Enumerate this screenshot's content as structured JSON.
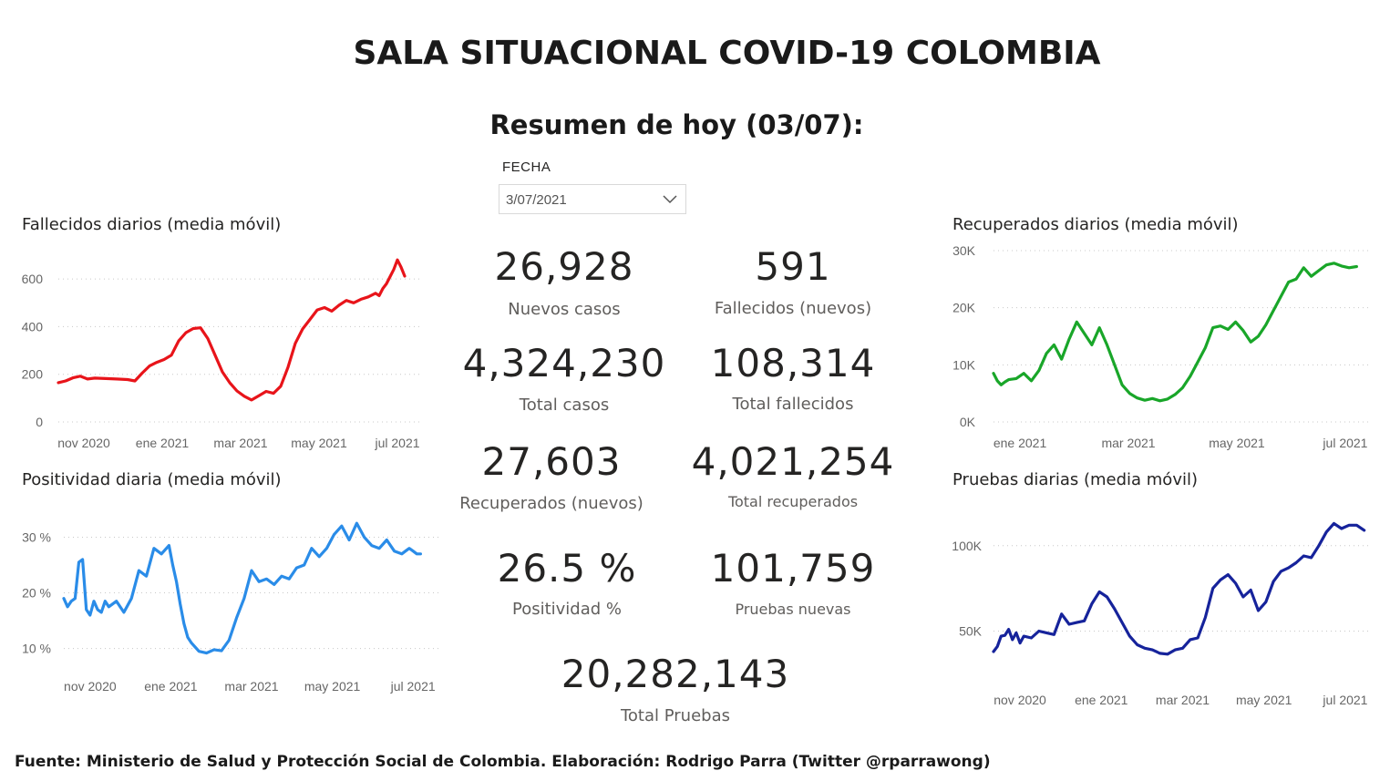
{
  "header": {
    "title": "SALA SITUACIONAL COVID-19 COLOMBIA",
    "subtitle": "Resumen de hoy (03/07):"
  },
  "date_slicer": {
    "label": "FECHA",
    "value": "3/07/2021",
    "icon": "chevron-down-icon"
  },
  "kpis": {
    "nuevos_casos": {
      "value": "26,928",
      "label": "Nuevos casos"
    },
    "fallecidos_nuevos": {
      "value": "591",
      "label": "Fallecidos (nuevos)"
    },
    "total_casos": {
      "value": "4,324,230",
      "label": "Total casos"
    },
    "total_fallecidos": {
      "value": "108,314",
      "label": "Total fallecidos"
    },
    "recuperados_nuevos": {
      "value": "27,603",
      "label": "Recuperados (nuevos)"
    },
    "total_recuperados": {
      "value": "4,021,254",
      "label": "Total recuperados"
    },
    "positividad": {
      "value": "26.5 %",
      "label": "Positividad %"
    },
    "pruebas_nuevas": {
      "value": "101,759",
      "label": "Pruebas nuevas"
    },
    "total_pruebas": {
      "value": "20,282,143",
      "label": "Total Pruebas"
    }
  },
  "footer": "Fuente: Ministerio de Salud y Protección Social de Colombia. Elaboración: Rodrigo Parra (Twitter @rparrawong)",
  "chart_data": [
    {
      "id": "fallecidos",
      "type": "line",
      "title": "Fallecidos diarios (media móvil)",
      "color": "#e8141a",
      "x_tick_labels": [
        "nov 2020",
        "ene 2021",
        "mar 2021",
        "may 2021",
        "jul 2021"
      ],
      "y_ticks": [
        0,
        200,
        400,
        600
      ],
      "y_tick_labels": [
        "0",
        "200",
        "400",
        "600"
      ],
      "ylim": [
        0,
        700
      ],
      "grid": true,
      "x": [
        0.0,
        0.02,
        0.04,
        0.06,
        0.08,
        0.1,
        0.13,
        0.16,
        0.19,
        0.21,
        0.23,
        0.25,
        0.27,
        0.29,
        0.31,
        0.33,
        0.35,
        0.37,
        0.39,
        0.41,
        0.43,
        0.45,
        0.47,
        0.49,
        0.51,
        0.53,
        0.55,
        0.57,
        0.59,
        0.61,
        0.63,
        0.65,
        0.67,
        0.69,
        0.71,
        0.73,
        0.75,
        0.77,
        0.79,
        0.81,
        0.83,
        0.85,
        0.87,
        0.88,
        0.89,
        0.9,
        0.91,
        0.92,
        0.93,
        0.94,
        0.95
      ],
      "values": [
        165,
        172,
        185,
        192,
        180,
        184,
        182,
        180,
        178,
        172,
        205,
        235,
        250,
        262,
        280,
        340,
        375,
        392,
        395,
        350,
        280,
        210,
        165,
        130,
        108,
        92,
        110,
        128,
        120,
        150,
        230,
        330,
        390,
        430,
        470,
        480,
        465,
        490,
        510,
        500,
        515,
        525,
        540,
        530,
        560,
        580,
        610,
        640,
        680,
        650,
        612
      ]
    },
    {
      "id": "positividad",
      "type": "line",
      "title": "Positividad diaria (media móvil)",
      "color": "#2a8ce8",
      "x_tick_labels": [
        "nov 2020",
        "ene 2021",
        "mar 2021",
        "may 2021",
        "jul 2021"
      ],
      "y_ticks": [
        10,
        20,
        30
      ],
      "y_tick_labels": [
        "10 %",
        "20 %",
        "30 %"
      ],
      "ylim": [
        7,
        34
      ],
      "grid": true,
      "x": [
        0.0,
        0.01,
        0.02,
        0.03,
        0.04,
        0.05,
        0.06,
        0.07,
        0.08,
        0.09,
        0.1,
        0.11,
        0.12,
        0.14,
        0.16,
        0.18,
        0.2,
        0.22,
        0.24,
        0.26,
        0.28,
        0.29,
        0.3,
        0.31,
        0.32,
        0.33,
        0.34,
        0.36,
        0.38,
        0.4,
        0.42,
        0.44,
        0.46,
        0.48,
        0.5,
        0.52,
        0.54,
        0.56,
        0.58,
        0.6,
        0.62,
        0.64,
        0.66,
        0.68,
        0.7,
        0.72,
        0.74,
        0.76,
        0.78,
        0.8,
        0.82,
        0.84,
        0.86,
        0.88,
        0.9,
        0.91,
        0.92,
        0.93,
        0.94,
        0.95
      ],
      "values": [
        19,
        17.5,
        18.5,
        19,
        25.5,
        26,
        17,
        16,
        18.5,
        17,
        16.5,
        18.5,
        17.5,
        18.5,
        16.5,
        19,
        24,
        23,
        28,
        27,
        28.5,
        25,
        22,
        18,
        14.5,
        12,
        11,
        9.5,
        9.2,
        9.8,
        9.6,
        11.5,
        15.5,
        19,
        24,
        22,
        22.5,
        21.5,
        23,
        22.5,
        24.5,
        25,
        28,
        26.5,
        28,
        30.5,
        32,
        29.5,
        32.5,
        30,
        28.5,
        28,
        29.5,
        27.5,
        27,
        27.5,
        28,
        27.5,
        27,
        27
      ]
    },
    {
      "id": "recuperados",
      "type": "line",
      "title": "Recuperados diarios (media móvil)",
      "color": "#19a629",
      "x_tick_labels": [
        "ene 2021",
        "mar 2021",
        "may 2021",
        "jul 2021"
      ],
      "y_ticks": [
        0,
        10000,
        20000,
        30000
      ],
      "y_tick_labels": [
        "0K",
        "10K",
        "20K",
        "30K"
      ],
      "ylim": [
        0,
        30000
      ],
      "grid": true,
      "x": [
        0.0,
        0.01,
        0.02,
        0.03,
        0.04,
        0.06,
        0.08,
        0.1,
        0.12,
        0.14,
        0.16,
        0.18,
        0.2,
        0.22,
        0.24,
        0.26,
        0.28,
        0.3,
        0.32,
        0.34,
        0.36,
        0.38,
        0.4,
        0.42,
        0.44,
        0.46,
        0.48,
        0.5,
        0.52,
        0.54,
        0.56,
        0.58,
        0.6,
        0.62,
        0.64,
        0.66,
        0.68,
        0.7,
        0.72,
        0.74,
        0.76,
        0.78,
        0.8,
        0.82,
        0.84,
        0.86,
        0.88,
        0.9,
        0.92,
        0.94,
        0.96
      ],
      "values": [
        8500,
        7200,
        6500,
        7000,
        7400,
        7600,
        8500,
        7200,
        9000,
        12000,
        13500,
        11000,
        14500,
        17500,
        15500,
        13500,
        16500,
        13500,
        10000,
        6500,
        5000,
        4200,
        3800,
        4100,
        3700,
        4000,
        4800,
        6000,
        8000,
        10500,
        13000,
        16500,
        16800,
        16200,
        17500,
        16000,
        14000,
        15000,
        17000,
        19500,
        22000,
        24500,
        25000,
        27000,
        25500,
        26500,
        27500,
        27800,
        27300,
        27000,
        27200
      ]
    },
    {
      "id": "pruebas",
      "type": "line",
      "title": "Pruebas diarias (media móvil)",
      "color": "#16239b",
      "x_tick_labels": [
        "nov 2020",
        "ene 2021",
        "mar 2021",
        "may 2021",
        "jul 2021"
      ],
      "y_ticks": [
        50000,
        100000
      ],
      "y_tick_labels": [
        "50K",
        "100K"
      ],
      "ylim": [
        22000,
        118000
      ],
      "grid": true,
      "x": [
        0.0,
        0.01,
        0.02,
        0.03,
        0.04,
        0.05,
        0.06,
        0.07,
        0.08,
        0.1,
        0.12,
        0.14,
        0.16,
        0.18,
        0.2,
        0.22,
        0.24,
        0.26,
        0.28,
        0.3,
        0.32,
        0.34,
        0.36,
        0.38,
        0.4,
        0.42,
        0.44,
        0.46,
        0.48,
        0.5,
        0.52,
        0.54,
        0.56,
        0.58,
        0.6,
        0.62,
        0.64,
        0.66,
        0.68,
        0.7,
        0.72,
        0.74,
        0.76,
        0.78,
        0.8,
        0.82,
        0.84,
        0.86,
        0.88,
        0.9,
        0.92,
        0.94,
        0.96,
        0.98
      ],
      "values": [
        38000,
        41000,
        47000,
        47500,
        51000,
        45000,
        49000,
        43000,
        47000,
        46000,
        50000,
        49000,
        48000,
        60000,
        54000,
        55000,
        56000,
        66000,
        73000,
        70000,
        63000,
        55000,
        47000,
        42000,
        40000,
        39000,
        37000,
        36500,
        39000,
        40000,
        45000,
        46000,
        58000,
        75000,
        80000,
        83000,
        78000,
        70000,
        74000,
        62000,
        67000,
        79000,
        85000,
        87000,
        90000,
        94000,
        93000,
        100000,
        108000,
        113000,
        110000,
        112000,
        112000,
        109000
      ]
    }
  ]
}
